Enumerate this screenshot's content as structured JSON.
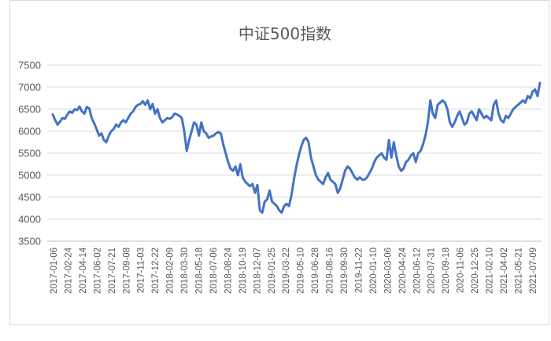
{
  "chart_data": {
    "type": "line",
    "title": "中证500指数",
    "xlabel": "",
    "ylabel": "",
    "ylim": [
      3500,
      7500
    ],
    "yticks": [
      3500,
      4000,
      4500,
      5000,
      5500,
      6000,
      6500,
      7000,
      7500
    ],
    "grid": true,
    "legend": "none",
    "colors": {
      "series": "#4472c4",
      "grid": "#d9d9d9",
      "text": "#595959"
    },
    "x_tick_labels": [
      "2017-01-06",
      "2017-02-24",
      "2017-04-14",
      "2017-06-02",
      "2017-07-21",
      "2017-09-08",
      "2017-11-03",
      "2017-12-22",
      "2018-02-09",
      "2018-03-30",
      "2018-05-18",
      "2018-07-06",
      "2018-08-24",
      "2018-10-19",
      "2018-12-07",
      "2019-01-25",
      "2019-03-22",
      "2019-05-10",
      "2019-06-28",
      "2019-08-16",
      "2019-09-30",
      "2019-11-22",
      "2020-01-10",
      "2020-03-06",
      "2020-04-24",
      "2020-06-12",
      "2020-07-31",
      "2020-09-18",
      "2020-11-06",
      "2020-12-25",
      "2021-02-10",
      "2021-04-02",
      "2021-05-21",
      "2021-07-09"
    ],
    "series": [
      {
        "values": [
          6380,
          6250,
          6150,
          6220,
          6300,
          6280,
          6380,
          6450,
          6420,
          6500,
          6480,
          6560,
          6450,
          6400,
          6550,
          6520,
          6300,
          6180,
          6050,
          5900,
          5950,
          5800,
          5750,
          5900,
          6000,
          6050,
          6150,
          6100,
          6200,
          6250,
          6200,
          6300,
          6400,
          6450,
          6550,
          6600,
          6620,
          6680,
          6600,
          6700,
          6500,
          6620,
          6400,
          6500,
          6300,
          6200,
          6250,
          6300,
          6280,
          6320,
          6400,
          6380,
          6350,
          6300,
          6000,
          5550,
          5800,
          6000,
          6200,
          6150,
          5900,
          6200,
          6000,
          5950,
          5850,
          5880,
          5900,
          5950,
          5980,
          5950,
          5700,
          5500,
          5300,
          5150,
          5100,
          5200,
          5000,
          5250,
          4950,
          4850,
          4800,
          4750,
          4800,
          4600,
          4780,
          4200,
          4150,
          4400,
          4450,
          4650,
          4400,
          4350,
          4300,
          4200,
          4150,
          4300,
          4350,
          4300,
          4550,
          4900,
          5200,
          5450,
          5650,
          5800,
          5850,
          5750,
          5400,
          5200,
          5000,
          4900,
          4850,
          4800,
          4950,
          5050,
          4900,
          4850,
          4800,
          4600,
          4700,
          4900,
          5100,
          5200,
          5150,
          5050,
          4950,
          4900,
          4950,
          4900,
          4900,
          4950,
          5050,
          5150,
          5300,
          5400,
          5450,
          5500,
          5400,
          5350,
          5800,
          5400,
          5750,
          5450,
          5200,
          5100,
          5150,
          5300,
          5350,
          5450,
          5500,
          5300,
          5500,
          5550,
          5700,
          5900,
          6200,
          6700,
          6400,
          6300,
          6600,
          6650,
          6700,
          6650,
          6500,
          6200,
          6100,
          6200,
          6350,
          6450,
          6300,
          6150,
          6200,
          6400,
          6450,
          6350,
          6250,
          6500,
          6400,
          6300,
          6350,
          6300,
          6250,
          6600,
          6700,
          6400,
          6250,
          6200,
          6350,
          6300,
          6400,
          6500,
          6550,
          6600,
          6650,
          6700,
          6650,
          6800,
          6750,
          6900,
          6950,
          6800,
          7100
        ]
      }
    ]
  }
}
